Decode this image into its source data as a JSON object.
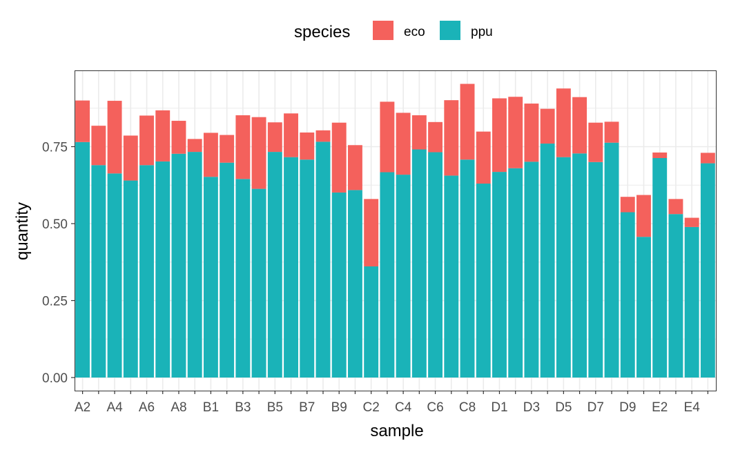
{
  "chart_data": {
    "type": "bar",
    "stacked": true,
    "xlabel": "sample",
    "ylabel": "quantity",
    "ylim": [
      0,
      0.98
    ],
    "y_ticks": [
      0.0,
      0.25,
      0.5,
      0.75
    ],
    "y_tick_labels": [
      "0.00",
      "0.25",
      "0.50",
      "0.75"
    ],
    "grid": true,
    "legend": {
      "title": "species",
      "position": "top"
    },
    "categories": [
      "A2",
      "A3",
      "A4",
      "A5",
      "A6",
      "A7",
      "A8",
      "A9",
      "B1",
      "B2",
      "B3",
      "B4",
      "B5",
      "B6",
      "B7",
      "B8",
      "B9",
      "C1",
      "C2",
      "C3",
      "C4",
      "C5",
      "C6",
      "C7",
      "C8",
      "C9",
      "D1",
      "D2",
      "D3",
      "D4",
      "D5",
      "D6",
      "D7",
      "D8",
      "D9",
      "E1",
      "E2",
      "E3",
      "E4",
      "E5"
    ],
    "x_tick_labels": [
      "A2",
      "A4",
      "A6",
      "A8",
      "B1",
      "B3",
      "B5",
      "B7",
      "B9",
      "C2",
      "C4",
      "C6",
      "C8",
      "D1",
      "D3",
      "D5",
      "D7",
      "D9",
      "E2",
      "E4"
    ],
    "series": [
      {
        "name": "ppu",
        "color": "#1AB3B8",
        "values": [
          0.765,
          0.69,
          0.663,
          0.64,
          0.69,
          0.702,
          0.727,
          0.733,
          0.652,
          0.698,
          0.645,
          0.613,
          0.733,
          0.716,
          0.708,
          0.766,
          0.601,
          0.609,
          0.361,
          0.667,
          0.659,
          0.741,
          0.732,
          0.656,
          0.708,
          0.63,
          0.668,
          0.68,
          0.701,
          0.76,
          0.716,
          0.728,
          0.7,
          0.763,
          0.537,
          0.457,
          0.713,
          0.531,
          0.489,
          0.696
        ]
      },
      {
        "name": "eco",
        "color": "#F4615C",
        "values": [
          0.135,
          0.128,
          0.236,
          0.146,
          0.161,
          0.166,
          0.107,
          0.042,
          0.143,
          0.09,
          0.207,
          0.233,
          0.096,
          0.142,
          0.088,
          0.037,
          0.227,
          0.146,
          0.219,
          0.229,
          0.201,
          0.111,
          0.098,
          0.245,
          0.246,
          0.169,
          0.239,
          0.232,
          0.189,
          0.113,
          0.223,
          0.183,
          0.128,
          0.068,
          0.05,
          0.136,
          0.018,
          0.049,
          0.03,
          0.034
        ]
      }
    ]
  }
}
